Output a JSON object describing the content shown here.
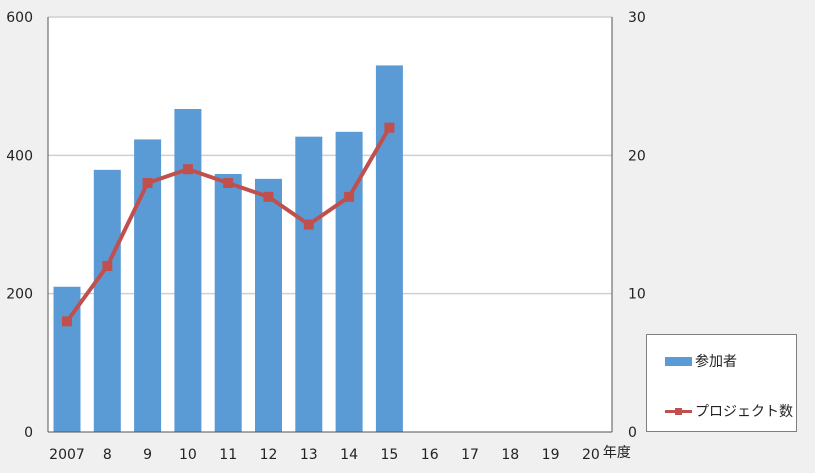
{
  "chart_data": {
    "type": "bar",
    "categories": [
      "2007",
      "8",
      "9",
      "10",
      "11",
      "12",
      "13",
      "14",
      "15",
      "16",
      "17",
      "18",
      "19",
      "20"
    ],
    "x_unit_label": "年度",
    "series": [
      {
        "name": "参加者",
        "type": "bar",
        "axis": "left",
        "color": "#5b9bd5",
        "values": [
          210,
          379,
          423,
          467,
          373,
          366,
          427,
          434,
          530,
          null,
          null,
          null,
          null,
          null
        ]
      },
      {
        "name": "プロジェクト数",
        "type": "line",
        "axis": "right",
        "color": "#c0504d",
        "marker": "square",
        "values": [
          8,
          12,
          18,
          19,
          18,
          17,
          15,
          17,
          22,
          null,
          null,
          null,
          null,
          null
        ]
      }
    ],
    "ylim_left": [
      0,
      600
    ],
    "yticks_left": [
      "0",
      "200",
      "400",
      "600"
    ],
    "ylim_right": [
      0,
      30
    ],
    "yticks_right": [
      "0",
      "10",
      "20",
      "30"
    ],
    "grid": true,
    "legend_position": "bottom-right"
  }
}
